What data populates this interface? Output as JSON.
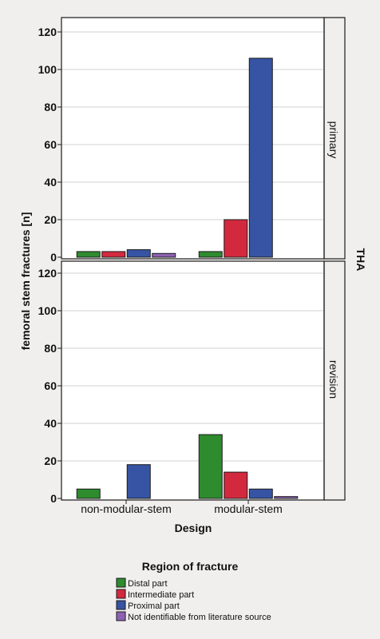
{
  "chart_data": {
    "type": "bar",
    "ylabel": "femoral stem fractures [n]",
    "xlabel": "Design",
    "facet_label": "THA",
    "categories": [
      "non-modular-stem",
      "modular-stem"
    ],
    "ylim": [
      0,
      120
    ],
    "yticks": [
      0,
      20,
      40,
      60,
      80,
      100,
      120
    ],
    "grid": true,
    "legend": {
      "title": "Region of fracture",
      "placement": "bottom"
    },
    "series": [
      {
        "name": "Distal part",
        "color": "#2e8b2e"
      },
      {
        "name": "Intermediate part",
        "color": "#d3293f"
      },
      {
        "name": "Proximal part",
        "color": "#3654a3"
      },
      {
        "name": "Not identifiable from literature source",
        "color": "#8e62b2"
      }
    ],
    "panels": [
      {
        "label": "primary",
        "values": [
          [
            3,
            3,
            4,
            2
          ],
          [
            3,
            20,
            106,
            0
          ]
        ]
      },
      {
        "label": "revision",
        "values": [
          [
            5,
            0,
            18,
            0
          ],
          [
            34,
            14,
            5,
            1
          ]
        ]
      }
    ]
  }
}
